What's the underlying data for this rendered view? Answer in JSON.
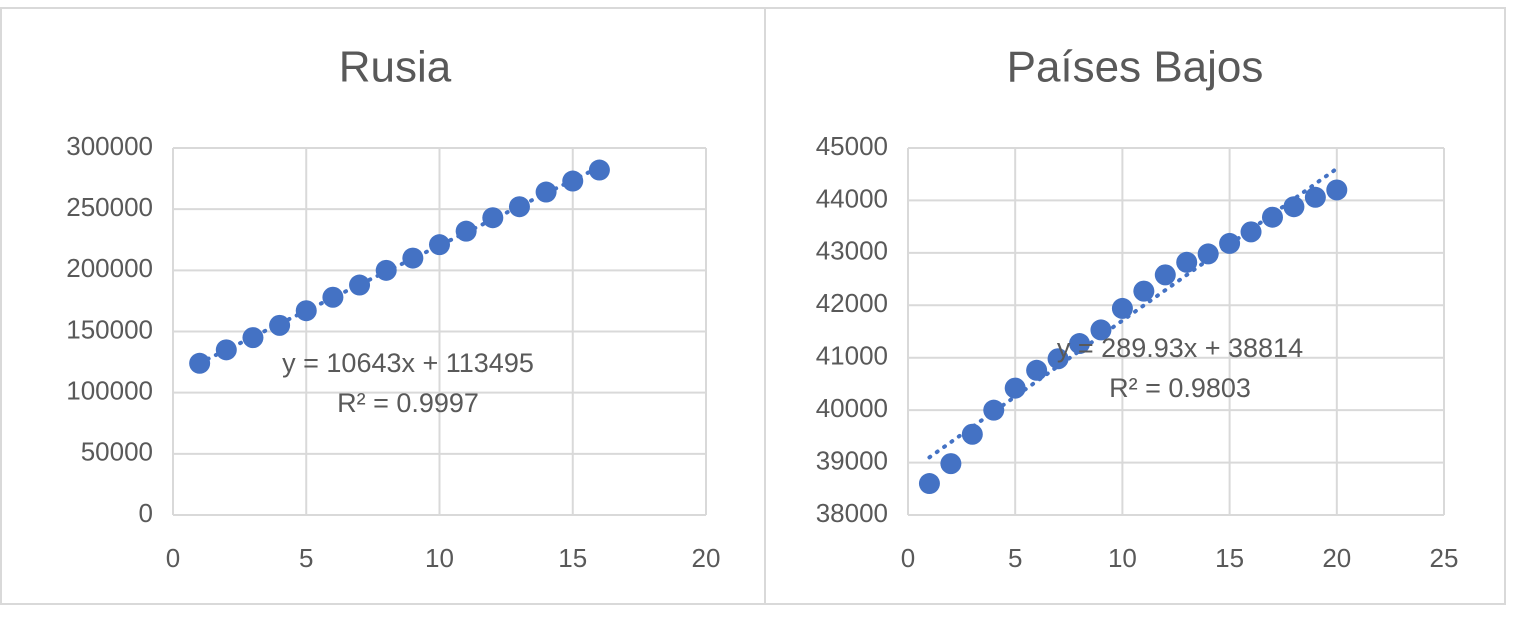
{
  "chart_data": [
    {
      "type": "scatter",
      "title": "Rusia",
      "color": "#4472c4",
      "grid": true,
      "trendline": true,
      "x": [
        1,
        2,
        3,
        4,
        5,
        6,
        7,
        8,
        9,
        10,
        11,
        12,
        13,
        14,
        15,
        16
      ],
      "values": [
        124000,
        135000,
        145000,
        155000,
        167000,
        178000,
        188000,
        200000,
        210000,
        221000,
        232000,
        243000,
        252000,
        264000,
        273000,
        282000
      ],
      "xlim": [
        0,
        20
      ],
      "xticks": [
        0,
        5,
        10,
        15,
        20
      ],
      "ylim": [
        0,
        300000
      ],
      "yticks": [
        0,
        50000,
        100000,
        150000,
        200000,
        250000,
        300000
      ],
      "annotations": [
        "y = 10643x + 113495",
        "R² = 0.9997"
      ]
    },
    {
      "type": "scatter",
      "title": "Países Bajos",
      "color": "#4472c4",
      "grid": true,
      "trendline": true,
      "x": [
        1,
        2,
        3,
        4,
        5,
        6,
        7,
        8,
        9,
        10,
        11,
        12,
        13,
        14,
        15,
        16,
        17,
        18,
        19,
        20
      ],
      "values": [
        38600,
        38980,
        39540,
        40000,
        40420,
        40760,
        40980,
        41270,
        41530,
        41940,
        42270,
        42580,
        42820,
        42980,
        43180,
        43400,
        43680,
        43880,
        44060,
        44200
      ],
      "xlim": [
        0,
        25
      ],
      "xticks": [
        0,
        5,
        10,
        15,
        20,
        25
      ],
      "ylim": [
        38000,
        45000
      ],
      "yticks": [
        38000,
        39000,
        40000,
        41000,
        42000,
        43000,
        44000,
        45000
      ],
      "annotations": [
        "y = 289.93x + 38814",
        "R² = 0.9803"
      ]
    }
  ]
}
